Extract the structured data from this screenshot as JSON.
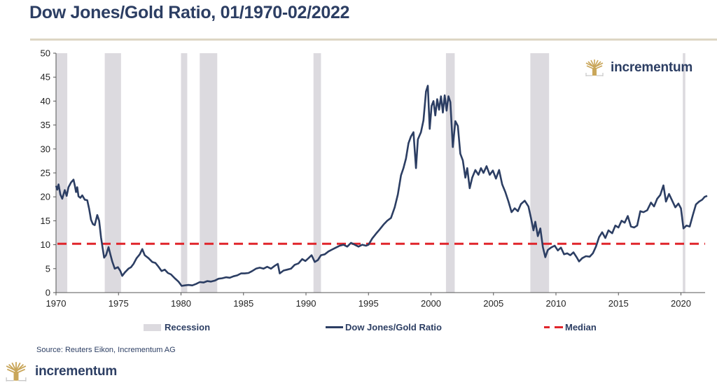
{
  "title": "Dow Jones/Gold Ratio, 01/1970-02/2022",
  "brand": {
    "name": "incrementum",
    "gold": "#c9a65a",
    "navy": "#2c3e63"
  },
  "source": "Source: Reuters Eikon, Incrementum AG",
  "legend": {
    "recession": "Recession",
    "ratio": "Dow Jones/Gold Ratio",
    "median": "Median"
  },
  "chart_data": {
    "type": "line",
    "title": "Dow Jones/Gold Ratio, 01/1970-02/2022",
    "xlabel": "",
    "ylabel": "",
    "xlim": [
      1970,
      2022.15
    ],
    "ylim": [
      0,
      50
    ],
    "x_ticks": [
      1970,
      1975,
      1980,
      1985,
      1990,
      1995,
      2000,
      2005,
      2010,
      2015,
      2020
    ],
    "y_ticks": [
      0,
      5,
      10,
      15,
      20,
      25,
      30,
      35,
      40,
      45,
      50
    ],
    "grid": false,
    "legend_position": "bottom",
    "colors": {
      "line": "#2c3e63",
      "median": "#e0252b",
      "recession": "#dcdadf"
    },
    "median": 10.2,
    "recessions": [
      [
        1970.0,
        1970.9
      ],
      [
        1973.9,
        1975.2
      ],
      [
        1980.0,
        1980.5
      ],
      [
        1981.5,
        1982.9
      ],
      [
        1990.6,
        1991.2
      ],
      [
        2001.2,
        2001.9
      ],
      [
        2007.95,
        2009.45
      ],
      [
        2020.15,
        2020.35
      ]
    ],
    "series": [
      {
        "name": "Dow Jones/Gold Ratio",
        "points": [
          [
            1970.0,
            22.3
          ],
          [
            1970.1,
            21.5
          ],
          [
            1970.2,
            22.6
          ],
          [
            1970.35,
            20.5
          ],
          [
            1970.5,
            19.6
          ],
          [
            1970.7,
            21.4
          ],
          [
            1970.85,
            20.2
          ],
          [
            1971.0,
            22.0
          ],
          [
            1971.2,
            23.0
          ],
          [
            1971.4,
            23.6
          ],
          [
            1971.5,
            22.4
          ],
          [
            1971.6,
            21.0
          ],
          [
            1971.7,
            22.0
          ],
          [
            1971.8,
            20.1
          ],
          [
            1971.95,
            19.8
          ],
          [
            1972.1,
            20.3
          ],
          [
            1972.3,
            19.4
          ],
          [
            1972.5,
            19.3
          ],
          [
            1972.65,
            17.5
          ],
          [
            1972.8,
            15.2
          ],
          [
            1972.95,
            14.3
          ],
          [
            1973.1,
            14.1
          ],
          [
            1973.3,
            16.2
          ],
          [
            1973.45,
            15.0
          ],
          [
            1973.6,
            11.5
          ],
          [
            1973.75,
            9.0
          ],
          [
            1973.85,
            7.3
          ],
          [
            1974.0,
            7.8
          ],
          [
            1974.2,
            9.5
          ],
          [
            1974.35,
            8.0
          ],
          [
            1974.5,
            6.5
          ],
          [
            1974.7,
            5.0
          ],
          [
            1974.95,
            5.3
          ],
          [
            1975.15,
            4.5
          ],
          [
            1975.3,
            3.5
          ],
          [
            1975.5,
            4.2
          ],
          [
            1975.8,
            5.0
          ],
          [
            1976.0,
            5.3
          ],
          [
            1976.2,
            6.0
          ],
          [
            1976.45,
            7.2
          ],
          [
            1976.7,
            8.0
          ],
          [
            1976.9,
            9.1
          ],
          [
            1977.1,
            7.8
          ],
          [
            1977.4,
            7.2
          ],
          [
            1977.7,
            6.4
          ],
          [
            1977.95,
            6.2
          ],
          [
            1978.2,
            5.4
          ],
          [
            1978.45,
            4.5
          ],
          [
            1978.7,
            4.8
          ],
          [
            1978.95,
            4.1
          ],
          [
            1979.2,
            3.8
          ],
          [
            1979.5,
            3.0
          ],
          [
            1979.8,
            2.3
          ],
          [
            1980.05,
            1.4
          ],
          [
            1980.3,
            1.5
          ],
          [
            1980.6,
            1.6
          ],
          [
            1980.9,
            1.5
          ],
          [
            1981.2,
            1.8
          ],
          [
            1981.5,
            2.2
          ],
          [
            1981.8,
            2.1
          ],
          [
            1982.1,
            2.4
          ],
          [
            1982.4,
            2.3
          ],
          [
            1982.7,
            2.5
          ],
          [
            1983.0,
            2.9
          ],
          [
            1983.3,
            3.0
          ],
          [
            1983.6,
            3.2
          ],
          [
            1983.9,
            3.1
          ],
          [
            1984.2,
            3.4
          ],
          [
            1984.5,
            3.6
          ],
          [
            1984.8,
            4.0
          ],
          [
            1985.1,
            4.0
          ],
          [
            1985.4,
            4.1
          ],
          [
            1985.7,
            4.5
          ],
          [
            1986.0,
            5.0
          ],
          [
            1986.3,
            5.2
          ],
          [
            1986.6,
            5.0
          ],
          [
            1986.9,
            5.4
          ],
          [
            1987.2,
            5.0
          ],
          [
            1987.5,
            5.6
          ],
          [
            1987.75,
            6.0
          ],
          [
            1987.9,
            4.0
          ],
          [
            1988.2,
            4.6
          ],
          [
            1988.5,
            4.8
          ],
          [
            1988.8,
            5.0
          ],
          [
            1989.1,
            5.8
          ],
          [
            1989.4,
            6.1
          ],
          [
            1989.7,
            7.0
          ],
          [
            1989.95,
            6.6
          ],
          [
            1990.2,
            7.2
          ],
          [
            1990.45,
            7.8
          ],
          [
            1990.7,
            6.4
          ],
          [
            1990.95,
            6.8
          ],
          [
            1991.2,
            7.8
          ],
          [
            1991.5,
            8.0
          ],
          [
            1991.8,
            8.6
          ],
          [
            1992.1,
            9.0
          ],
          [
            1992.4,
            9.4
          ],
          [
            1992.7,
            9.8
          ],
          [
            1993.0,
            10.0
          ],
          [
            1993.3,
            9.6
          ],
          [
            1993.6,
            10.4
          ],
          [
            1993.9,
            10.0
          ],
          [
            1994.2,
            9.6
          ],
          [
            1994.5,
            10.0
          ],
          [
            1994.8,
            9.8
          ],
          [
            1995.0,
            10.0
          ],
          [
            1995.3,
            11.3
          ],
          [
            1995.6,
            12.3
          ],
          [
            1995.9,
            13.2
          ],
          [
            1996.2,
            14.2
          ],
          [
            1996.5,
            15.0
          ],
          [
            1996.8,
            15.6
          ],
          [
            1997.1,
            17.8
          ],
          [
            1997.35,
            20.5
          ],
          [
            1997.6,
            24.5
          ],
          [
            1997.8,
            26.0
          ],
          [
            1998.0,
            28.0
          ],
          [
            1998.2,
            31.2
          ],
          [
            1998.4,
            32.6
          ],
          [
            1998.6,
            33.5
          ],
          [
            1998.8,
            26.0
          ],
          [
            1998.95,
            32.0
          ],
          [
            1999.2,
            33.5
          ],
          [
            1999.4,
            36.0
          ],
          [
            1999.6,
            42.0
          ],
          [
            1999.75,
            43.2
          ],
          [
            1999.9,
            34.2
          ],
          [
            2000.05,
            39.0
          ],
          [
            2000.2,
            40.0
          ],
          [
            2000.35,
            37.0
          ],
          [
            2000.5,
            40.4
          ],
          [
            2000.65,
            38.2
          ],
          [
            2000.8,
            41.0
          ],
          [
            2000.95,
            37.6
          ],
          [
            2001.1,
            41.2
          ],
          [
            2001.25,
            38.0
          ],
          [
            2001.4,
            41.0
          ],
          [
            2001.55,
            39.8
          ],
          [
            2001.75,
            30.4
          ],
          [
            2001.95,
            35.8
          ],
          [
            2002.15,
            34.8
          ],
          [
            2002.35,
            29.0
          ],
          [
            2002.55,
            27.6
          ],
          [
            2002.75,
            24.0
          ],
          [
            2002.9,
            26.0
          ],
          [
            2003.1,
            21.8
          ],
          [
            2003.3,
            24.0
          ],
          [
            2003.55,
            25.6
          ],
          [
            2003.8,
            24.6
          ],
          [
            2004.0,
            26.0
          ],
          [
            2004.2,
            25.0
          ],
          [
            2004.45,
            26.4
          ],
          [
            2004.7,
            24.6
          ],
          [
            2004.95,
            25.5
          ],
          [
            2005.2,
            23.8
          ],
          [
            2005.45,
            25.6
          ],
          [
            2005.7,
            22.6
          ],
          [
            2005.95,
            21.0
          ],
          [
            2006.2,
            19.0
          ],
          [
            2006.45,
            16.8
          ],
          [
            2006.7,
            17.6
          ],
          [
            2006.95,
            17.0
          ],
          [
            2007.2,
            18.5
          ],
          [
            2007.5,
            19.2
          ],
          [
            2007.8,
            18.0
          ],
          [
            2008.0,
            15.6
          ],
          [
            2008.2,
            13.0
          ],
          [
            2008.35,
            14.8
          ],
          [
            2008.55,
            11.8
          ],
          [
            2008.75,
            13.4
          ],
          [
            2008.95,
            9.5
          ],
          [
            2009.15,
            7.4
          ],
          [
            2009.35,
            8.9
          ],
          [
            2009.6,
            9.4
          ],
          [
            2009.9,
            9.8
          ],
          [
            2010.15,
            8.8
          ],
          [
            2010.4,
            9.4
          ],
          [
            2010.65,
            8.0
          ],
          [
            2010.9,
            8.2
          ],
          [
            2011.15,
            7.8
          ],
          [
            2011.4,
            8.4
          ],
          [
            2011.65,
            7.4
          ],
          [
            2011.85,
            6.5
          ],
          [
            2012.1,
            7.2
          ],
          [
            2012.4,
            7.6
          ],
          [
            2012.7,
            7.5
          ],
          [
            2012.95,
            8.2
          ],
          [
            2013.2,
            9.6
          ],
          [
            2013.45,
            11.6
          ],
          [
            2013.7,
            12.6
          ],
          [
            2013.95,
            11.4
          ],
          [
            2014.2,
            13.0
          ],
          [
            2014.5,
            12.4
          ],
          [
            2014.75,
            14.0
          ],
          [
            2015.0,
            13.6
          ],
          [
            2015.25,
            15.0
          ],
          [
            2015.5,
            14.6
          ],
          [
            2015.75,
            16.0
          ],
          [
            2016.0,
            13.8
          ],
          [
            2016.25,
            13.6
          ],
          [
            2016.5,
            14.0
          ],
          [
            2016.75,
            17.0
          ],
          [
            2017.0,
            16.8
          ],
          [
            2017.3,
            17.2
          ],
          [
            2017.6,
            18.8
          ],
          [
            2017.85,
            18.0
          ],
          [
            2018.1,
            19.6
          ],
          [
            2018.35,
            20.4
          ],
          [
            2018.6,
            22.4
          ],
          [
            2018.8,
            19.0
          ],
          [
            2019.05,
            20.6
          ],
          [
            2019.3,
            19.2
          ],
          [
            2019.55,
            17.8
          ],
          [
            2019.8,
            18.6
          ],
          [
            2020.0,
            17.6
          ],
          [
            2020.2,
            13.4
          ],
          [
            2020.45,
            14.0
          ],
          [
            2020.7,
            13.8
          ],
          [
            2020.95,
            16.2
          ],
          [
            2021.2,
            18.4
          ],
          [
            2021.45,
            19.0
          ],
          [
            2021.7,
            19.4
          ],
          [
            2021.9,
            20.0
          ],
          [
            2022.1,
            20.2
          ]
        ]
      }
    ]
  }
}
